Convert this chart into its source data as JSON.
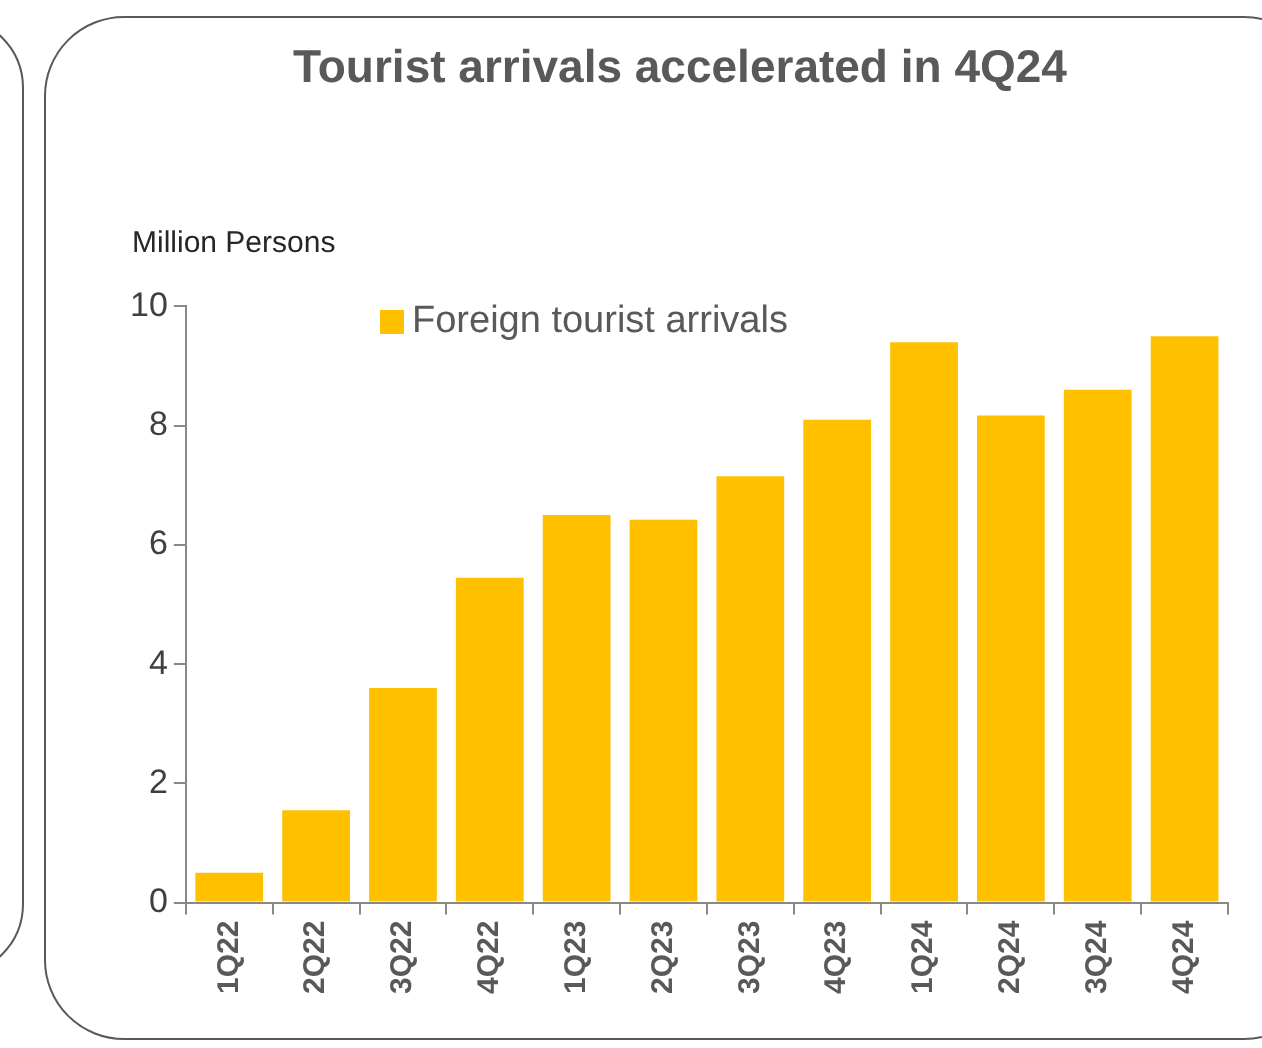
{
  "chart_data": {
    "type": "bar",
    "title": "Tourist arrivals accelerated in 4Q24",
    "ylabel": "Million Persons",
    "categories": [
      "1Q22",
      "2Q22",
      "3Q22",
      "4Q22",
      "1Q23",
      "2Q23",
      "3Q23",
      "4Q23",
      "1Q24",
      "2Q24",
      "3Q24",
      "4Q24"
    ],
    "series": [
      {
        "name": "Foreign tourist arrivals",
        "color": "#ffc000",
        "values": [
          0.5,
          1.55,
          3.6,
          5.45,
          6.5,
          6.42,
          7.15,
          8.1,
          9.4,
          8.17,
          8.6,
          9.5
        ]
      }
    ],
    "ylim": [
      0,
      10
    ],
    "yticks": [
      0,
      2,
      4,
      6,
      8,
      10
    ],
    "grid": false,
    "legend": "top left"
  }
}
